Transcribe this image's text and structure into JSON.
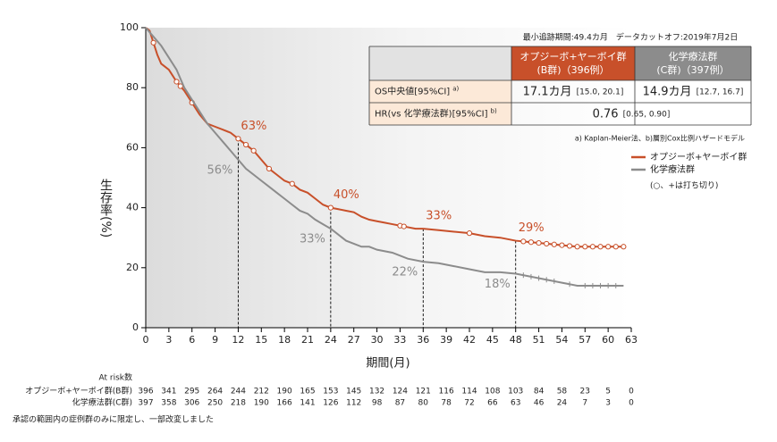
{
  "top_note": "最小追跡期間:49.4カ月　データカットオフ:2019年7月2日",
  "table": {
    "header": [
      {
        "name": "オプジーボ+ヤーボイ群",
        "sub": "(B群)（396例）",
        "color": "#c8502a"
      },
      {
        "name": "化学療法群",
        "sub": "(C群)（397例）",
        "color": "#8c8c8c"
      }
    ],
    "rows": [
      {
        "label": "OS中央値[95%CI]",
        "note": "a)",
        "cells": [
          {
            "main": "17.1カ月",
            "ci": "[15.0, 20.1]"
          },
          {
            "main": "14.9カ月",
            "ci": "[12.7, 16.7]"
          }
        ]
      },
      {
        "label": "HR(vs 化学療法群)[95%CI]",
        "note": "b)",
        "cells": [
          {
            "main": "0.76",
            "ci": "[0.65, 0.90]"
          }
        ]
      }
    ],
    "footnote": "a) Kaplan-Meier法、b)層別Cox比例ハザードモデル"
  },
  "chart_data": {
    "type": "line",
    "xlabel": "期間(月)",
    "ylabel": "生存率(%)",
    "xlim": [
      0,
      63
    ],
    "ylim": [
      0,
      100
    ],
    "xticks": [
      0,
      3,
      6,
      9,
      12,
      15,
      18,
      21,
      24,
      27,
      30,
      33,
      36,
      39,
      42,
      45,
      48,
      51,
      54,
      57,
      60,
      63
    ],
    "yticks": [
      0,
      20,
      40,
      60,
      80,
      100
    ],
    "series": [
      {
        "name": "オプジーボ+ヤーボイ群",
        "color": "#c8502a",
        "censor": "circle",
        "x": [
          0,
          0.5,
          1,
          1.5,
          2,
          3,
          4,
          5,
          6,
          7,
          8,
          9,
          10,
          11,
          12,
          13,
          14,
          15,
          16,
          17,
          18,
          19,
          20,
          21,
          22,
          23,
          24,
          25,
          26,
          27,
          28,
          29,
          30,
          31,
          32,
          33,
          34,
          35,
          36,
          38,
          40,
          42,
          44,
          46,
          48,
          50,
          52,
          54,
          56,
          60,
          62
        ],
        "values": [
          100,
          99,
          95,
          91,
          88,
          86,
          82,
          79,
          75,
          71,
          68,
          67,
          66,
          65,
          63,
          61,
          59,
          56,
          53,
          51,
          49,
          48,
          46,
          45,
          43,
          41,
          40,
          39.5,
          39,
          38.5,
          37,
          36,
          35.5,
          35,
          34.5,
          34,
          33.5,
          33,
          33,
          32.5,
          32,
          31.5,
          30.5,
          30,
          29,
          28.5,
          28,
          27.5,
          27,
          27,
          27
        ],
        "censored_x": [
          1,
          4,
          4.5,
          6,
          12,
          13,
          14,
          16,
          19,
          24,
          33,
          33.5,
          42,
          49,
          50,
          51,
          52,
          53,
          54,
          55,
          56,
          57,
          58,
          59,
          60,
          61,
          62
        ]
      },
      {
        "name": "化学療法群",
        "color": "#8c8c8c",
        "censor": "plus",
        "x": [
          0,
          1,
          2,
          3,
          4,
          5,
          6,
          7,
          8,
          9,
          10,
          11,
          12,
          13,
          14,
          15,
          16,
          17,
          18,
          19,
          20,
          21,
          22,
          23,
          24,
          25,
          26,
          27,
          28,
          29,
          30,
          32,
          34,
          36,
          38,
          40,
          42,
          44,
          46,
          48,
          50,
          52,
          54,
          56,
          58,
          62
        ],
        "values": [
          100,
          97,
          94,
          90,
          86,
          80,
          76,
          72,
          68,
          65,
          62,
          59,
          56,
          53,
          51,
          49,
          47,
          45,
          43,
          41,
          39,
          38,
          36,
          34.5,
          33,
          31,
          29,
          28,
          27,
          27,
          26,
          25,
          23,
          22,
          21.5,
          20.5,
          19.5,
          18.5,
          18.5,
          18,
          17,
          16,
          15,
          14,
          14,
          14
        ],
        "censored_x": [
          49,
          50,
          51,
          52,
          53,
          55,
          57,
          58,
          59,
          60,
          61
        ]
      }
    ],
    "annotations": [
      {
        "x": 12,
        "value": 63,
        "label": "63%",
        "series": 0
      },
      {
        "x": 24,
        "value": 40,
        "label": "40%",
        "series": 0
      },
      {
        "x": 36,
        "value": 33,
        "label": "33%",
        "series": 0
      },
      {
        "x": 48,
        "value": 29,
        "label": "29%",
        "series": 0
      },
      {
        "x": 12,
        "value": 56,
        "label": "56%",
        "series": 1
      },
      {
        "x": 24,
        "value": 33,
        "label": "33%",
        "series": 1
      },
      {
        "x": 36,
        "value": 22,
        "label": "22%",
        "series": 1
      },
      {
        "x": 48,
        "value": 18,
        "label": "18%",
        "series": 1
      }
    ],
    "legend_note": "(○、+は打ち切り)"
  },
  "at_risk": {
    "title": "At risk数",
    "rows": [
      {
        "name": "オプジーボ+ヤーボイ群(B群)",
        "values": [
          396,
          341,
          295,
          264,
          244,
          212,
          190,
          165,
          153,
          145,
          132,
          124,
          121,
          116,
          114,
          108,
          103,
          84,
          58,
          23,
          5,
          0
        ]
      },
      {
        "name": "化学療法群(C群)",
        "values": [
          397,
          358,
          306,
          250,
          218,
          190,
          166,
          141,
          126,
          112,
          98,
          87,
          80,
          78,
          72,
          66,
          63,
          46,
          24,
          7,
          3,
          0
        ]
      }
    ]
  },
  "disclaimer": "承認の範囲内の症例群のみに限定し、一部改変しました"
}
